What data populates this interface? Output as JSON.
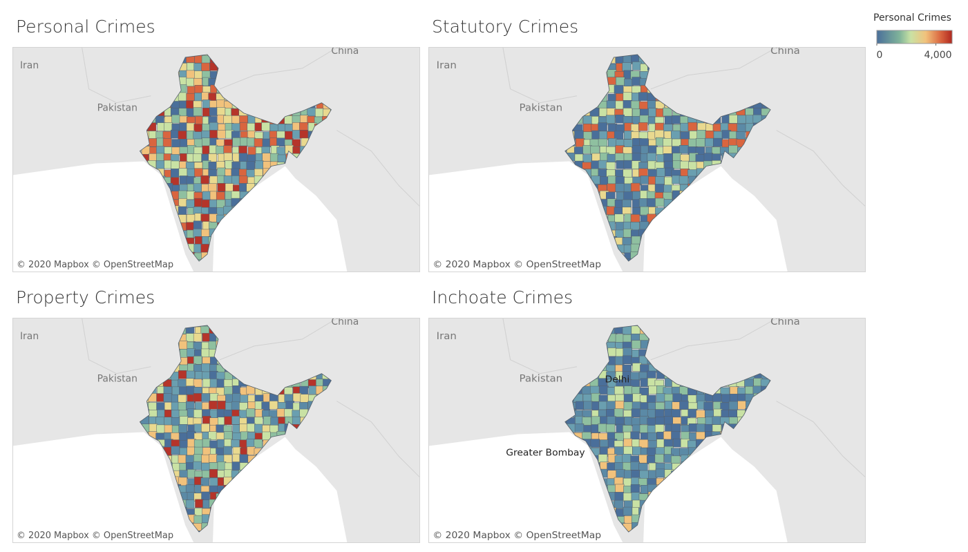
{
  "legend": {
    "title": "Personal Crimes",
    "range": [
      0,
      5100
    ],
    "ticks": [
      0,
      {
        "value": 4000,
        "label": "4,000"
      }
    ]
  },
  "panels": [
    {
      "title": "Personal Crimes",
      "labels": [
        "Iran",
        "China",
        "Pakistan"
      ],
      "attribution": "© 2020 Mapbox © OpenStreetMap"
    },
    {
      "title": "Statutory Crimes",
      "labels": [
        "Iran",
        "China",
        "Pakistan"
      ],
      "attribution": "© 2020 Mapbox © OpenStreetMap"
    },
    {
      "title": "Property Crimes",
      "labels": [
        "Iran",
        "China",
        "Pakistan"
      ],
      "attribution": "© 2020 Mapbox © OpenStreetMap"
    },
    {
      "title": "Inchoate Crimes",
      "labels": [
        "Iran",
        "China",
        "Pakistan",
        "Delhi",
        "Greater Bombay"
      ],
      "attribution": "© 2020 Mapbox © OpenStreetMap"
    }
  ]
}
